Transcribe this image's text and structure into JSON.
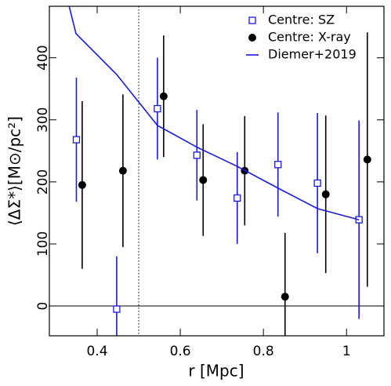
{
  "chart_data": {
    "type": "scatter",
    "x_label": "r [Mpc]",
    "y_label": "⟨ΔΣ*⟩[M⊙/pc²]",
    "xlim": [
      0.285,
      1.09
    ],
    "ylim": [
      -48,
      483
    ],
    "xticks": [
      0.4,
      0.6,
      0.8,
      1
    ],
    "yticks": [
      0,
      100,
      200,
      300,
      400
    ],
    "vlines": [
      0.5
    ],
    "hlines": [
      0
    ],
    "legend": "upper right",
    "series": [
      {
        "name": "Centre: SZ",
        "kind": "errorbar",
        "marker": "open-square",
        "color": "#1a1adb",
        "x": [
          0.35,
          0.447,
          0.545,
          0.64,
          0.737,
          0.835,
          0.93,
          1.03
        ],
        "values": [
          268,
          -5,
          318,
          243,
          174,
          228,
          198,
          139
        ],
        "errors": [
          100,
          85,
          82,
          73,
          74,
          84,
          113,
          160
        ]
      },
      {
        "name": "Centre: X-ray",
        "kind": "errorbar",
        "marker": "filled-circle",
        "color": "#000000",
        "x": [
          0.364,
          0.462,
          0.56,
          0.655,
          0.755,
          0.852,
          0.95,
          1.05
        ],
        "values": [
          195,
          218,
          338,
          203,
          218,
          15,
          180,
          236
        ],
        "errors": [
          135,
          123,
          98,
          90,
          88,
          103,
          127,
          205
        ]
      },
      {
        "name": "Diemer+2019",
        "kind": "line",
        "color": "#1a1adb",
        "x": [
          0.33,
          0.349,
          0.447,
          0.545,
          0.64,
          0.737,
          0.835,
          0.93,
          1.03
        ],
        "values": [
          490,
          439,
          373,
          291,
          256,
          225,
          190,
          157,
          139
        ]
      }
    ]
  }
}
